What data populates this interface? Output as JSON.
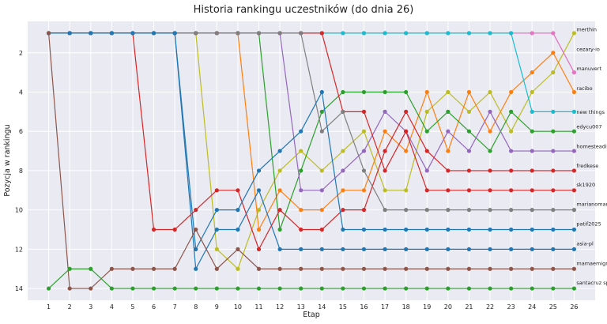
{
  "chart_data": {
    "type": "line",
    "title": "Historia rankingu uczestników (do dnia 26)",
    "xlabel": "Etap",
    "ylabel": "Pozycja w rankingu",
    "x": [
      1,
      2,
      3,
      4,
      5,
      6,
      7,
      8,
      9,
      10,
      11,
      12,
      13,
      14,
      15,
      16,
      17,
      18,
      19,
      20,
      21,
      22,
      23,
      24,
      25,
      26
    ],
    "xlim": [
      0,
      27
    ],
    "ylim": [
      14.6,
      0.4
    ],
    "y_inverted": true,
    "yticks": [
      2,
      4,
      6,
      8,
      10,
      12,
      14
    ],
    "grid": true,
    "legend": "none",
    "series": [
      {
        "name": "merthin",
        "color": "#bcbd22",
        "values": [
          1,
          1,
          1,
          1,
          1,
          1,
          1,
          1,
          12,
          13,
          10,
          8,
          7,
          8,
          7,
          6,
          9,
          9,
          5,
          4,
          5,
          4,
          6,
          4,
          3,
          1
        ]
      },
      {
        "name": "cezary-io",
        "color": "#ff7f0e",
        "values": [
          1,
          1,
          1,
          1,
          1,
          1,
          1,
          1,
          1,
          1,
          11,
          9,
          10,
          10,
          9,
          9,
          6,
          7,
          4,
          7,
          4,
          6,
          4,
          3,
          2,
          4
        ]
      },
      {
        "name": "manuvert",
        "color": "#e377c2",
        "values": [
          1,
          1,
          1,
          1,
          1,
          1,
          1,
          1,
          1,
          1,
          1,
          1,
          1,
          1,
          1,
          1,
          1,
          1,
          1,
          1,
          1,
          1,
          1,
          1,
          1,
          3
        ]
      },
      {
        "name": "racibo",
        "color": "#e377c2",
        "values": [
          1,
          1,
          1,
          1,
          1,
          1,
          1,
          1,
          1,
          1,
          1,
          1,
          1,
          1,
          1,
          1,
          1,
          1,
          1,
          1,
          1,
          1,
          1,
          1,
          1,
          3
        ]
      },
      {
        "name": "new things",
        "color": "#17becf",
        "values": [
          1,
          1,
          1,
          1,
          1,
          1,
          1,
          1,
          1,
          1,
          1,
          1,
          1,
          1,
          1,
          1,
          1,
          1,
          1,
          1,
          1,
          1,
          1,
          5,
          5,
          5
        ]
      },
      {
        "name": "edycu007",
        "color": "#2ca02c",
        "values": [
          1,
          1,
          1,
          1,
          1,
          1,
          1,
          1,
          1,
          1,
          1,
          11,
          8,
          5,
          4,
          4,
          4,
          4,
          6,
          5,
          6,
          7,
          5,
          6,
          6,
          6
        ]
      },
      {
        "name": "homesteadit",
        "color": "#9467bd",
        "values": [
          1,
          1,
          1,
          1,
          1,
          1,
          1,
          1,
          1,
          1,
          1,
          1,
          9,
          9,
          8,
          7,
          5,
          6,
          8,
          6,
          7,
          5,
          7,
          7,
          7,
          7
        ]
      },
      {
        "name": "fredkese",
        "color": "#d62728",
        "values": [
          1,
          1,
          1,
          1,
          1,
          11,
          11,
          10,
          9,
          9,
          12,
          10,
          11,
          11,
          10,
          10,
          7,
          5,
          7,
          8,
          8,
          8,
          8,
          8,
          8,
          8
        ]
      },
      {
        "name": "sk1920",
        "color": "#d62728",
        "values": [
          1,
          1,
          1,
          1,
          1,
          1,
          1,
          1,
          1,
          1,
          1,
          1,
          1,
          1,
          5,
          5,
          8,
          6,
          9,
          9,
          9,
          9,
          9,
          9,
          9,
          9
        ]
      },
      {
        "name": "marianomariano",
        "color": "#7f7f7f",
        "values": [
          1,
          1,
          1,
          1,
          1,
          1,
          1,
          1,
          1,
          1,
          1,
          1,
          1,
          6,
          5,
          8,
          10,
          10,
          10,
          10,
          10,
          10,
          10,
          10,
          10,
          10
        ]
      },
      {
        "name": "patif2025",
        "color": "#1f77b4",
        "values": [
          1,
          1,
          1,
          1,
          1,
          1,
          1,
          13,
          11,
          11,
          9,
          12,
          12,
          12,
          12,
          12,
          12,
          12,
          12,
          12,
          12,
          12,
          12,
          12,
          12,
          12
        ]
      },
      {
        "name": "asia-pl",
        "color": "#1f77b4",
        "values": [
          1,
          1,
          1,
          1,
          1,
          1,
          1,
          12,
          10,
          10,
          8,
          7,
          6,
          4,
          11,
          11,
          11,
          11,
          11,
          11,
          11,
          11,
          11,
          11,
          11,
          11
        ]
      },
      {
        "name": "mamaemigrantefit",
        "color": "#8c564b",
        "values": [
          1,
          14,
          14,
          13,
          13,
          13,
          13,
          11,
          13,
          12,
          13,
          13,
          13,
          13,
          13,
          13,
          13,
          13,
          13,
          13,
          13,
          13,
          13,
          13,
          13,
          13
        ]
      },
      {
        "name": "santacruz sports",
        "color": "#2ca02c",
        "values": [
          14,
          13,
          13,
          14,
          14,
          14,
          14,
          14,
          14,
          14,
          14,
          14,
          14,
          14,
          14,
          14,
          14,
          14,
          14,
          14,
          14,
          14,
          14,
          14,
          14,
          14
        ]
      }
    ],
    "end_labels": [
      {
        "text": "merthin",
        "y": 0.9
      },
      {
        "text": "cezary-io",
        "y": 1.9
      },
      {
        "text": "manuvert",
        "y": 2.9
      },
      {
        "text": "racibo",
        "y": 3.9
      },
      {
        "text": "new things",
        "y": 5.1
      },
      {
        "text": "edycu007",
        "y": 5.85
      },
      {
        "text": "homesteadit",
        "y": 6.85
      },
      {
        "text": "fredkese",
        "y": 7.85
      },
      {
        "text": "sk1920",
        "y": 8.8
      },
      {
        "text": "marianomariano",
        "y": 9.8
      },
      {
        "text": "patif2025",
        "y": 10.8
      },
      {
        "text": "asia-pl",
        "y": 11.8
      },
      {
        "text": "mamaemigrantefit",
        "y": 12.8
      },
      {
        "text": "santacruz sports",
        "y": 13.8
      }
    ]
  }
}
